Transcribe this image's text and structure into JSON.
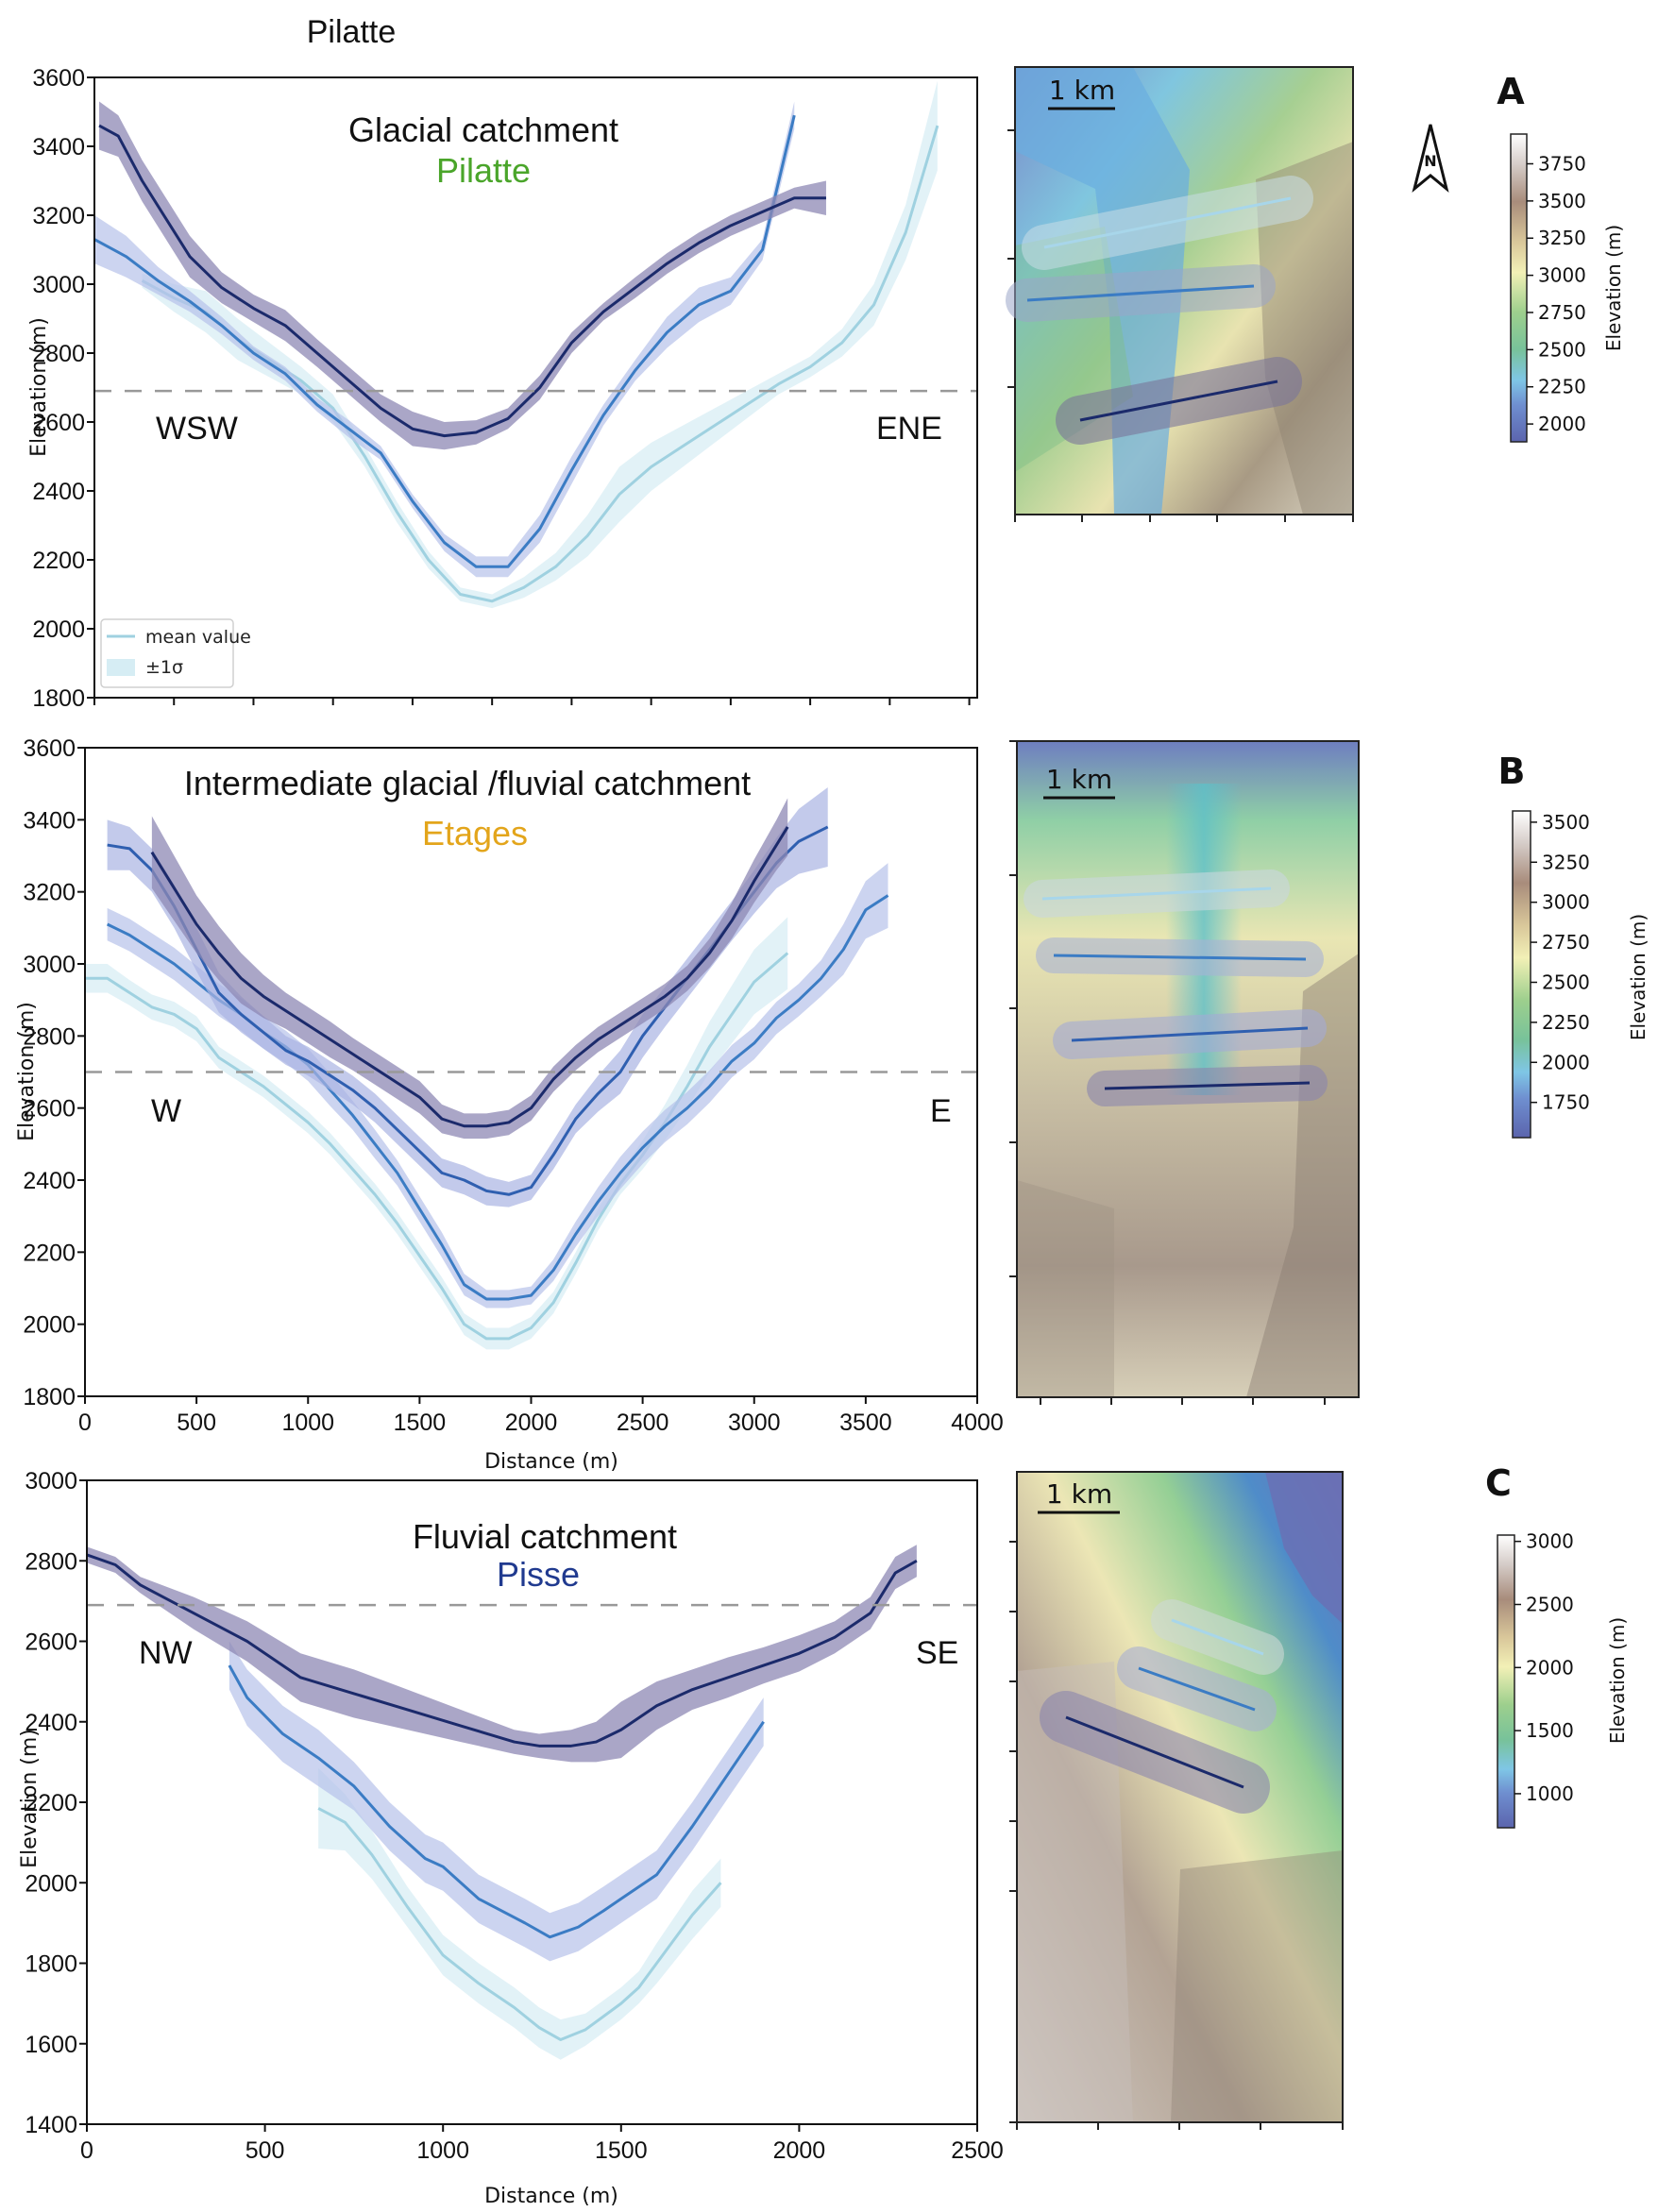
{
  "figure_title": "Pilatte",
  "colors": {
    "dark": "#1b2a6b",
    "dark_band": "#8e88b4",
    "mid": "#2f5fb0",
    "mid_band": "#aab4e2",
    "blue": "#3b7cc4",
    "blue_band": "#b6c2ea",
    "light": "#9fd1e0",
    "light_band": "#d6edf4",
    "ela_line": "#999999",
    "pilatte": "#4aa52a",
    "etages": "#e3a51b",
    "pisse": "#203a8f"
  },
  "chart_data": [
    {
      "type": "line",
      "panel": "A",
      "title": "Glacial catchment",
      "subtitle": "Pilatte",
      "subtitle_color_key": "pilatte",
      "xlabel": "",
      "ylabel": "Elevation (m)",
      "xlim": [
        0,
        5550
      ],
      "ylim": [
        1800,
        3600
      ],
      "xticks": [
        0,
        500,
        1000,
        1500,
        2000,
        2500,
        3000,
        3500,
        4000,
        4500,
        5000,
        5500
      ],
      "xtick_labels_shown": false,
      "yticks": [
        1800,
        2000,
        2200,
        2400,
        2600,
        2800,
        3000,
        3200,
        3400,
        3600
      ],
      "dashed_line_y": 2690,
      "direction_left": "WSW",
      "direction_right": "ENE",
      "legend": {
        "placement": "bottom-left",
        "entries": [
          "mean value",
          "±1σ"
        ]
      },
      "series": [
        {
          "name": "profile-1",
          "color_key": "light",
          "x": [
            300,
            500,
            700,
            900,
            1100,
            1300,
            1500,
            1700,
            1900,
            2100,
            2300,
            2500,
            2700,
            2900,
            3100,
            3300,
            3500,
            3700,
            3900,
            4100,
            4300,
            4500,
            4700,
            4900,
            5100,
            5300
          ],
          "y": [
            3010,
            2960,
            2920,
            2840,
            2780,
            2720,
            2640,
            2500,
            2340,
            2200,
            2100,
            2080,
            2120,
            2180,
            2270,
            2390,
            2470,
            2530,
            2590,
            2650,
            2710,
            2760,
            2830,
            2940,
            3150,
            3460
          ],
          "sigma": [
            20,
            40,
            60,
            60,
            50,
            40,
            40,
            30,
            30,
            25,
            20,
            20,
            30,
            40,
            60,
            80,
            70,
            60,
            50,
            40,
            30,
            30,
            40,
            60,
            80,
            130
          ]
        },
        {
          "name": "profile-2",
          "color_key": "blue",
          "x": [
            0,
            200,
            400,
            600,
            800,
            1000,
            1200,
            1400,
            1600,
            1800,
            2000,
            2200,
            2400,
            2600,
            2800,
            3000,
            3200,
            3400,
            3600,
            3800,
            4000,
            4200,
            4400
          ],
          "y": [
            3130,
            3080,
            3010,
            2950,
            2880,
            2800,
            2740,
            2650,
            2580,
            2510,
            2370,
            2250,
            2180,
            2180,
            2290,
            2460,
            2620,
            2750,
            2860,
            2940,
            2980,
            3100,
            3490
          ],
          "sigma": [
            70,
            60,
            40,
            30,
            25,
            20,
            20,
            20,
            25,
            20,
            20,
            25,
            30,
            30,
            40,
            40,
            30,
            30,
            45,
            50,
            40,
            30,
            40
          ]
        },
        {
          "name": "profile-3",
          "color_key": "dark",
          "x": [
            30,
            150,
            300,
            450,
            600,
            800,
            1000,
            1200,
            1400,
            1600,
            1800,
            2000,
            2200,
            2400,
            2600,
            2800,
            3000,
            3200,
            3400,
            3600,
            3800,
            4000,
            4200,
            4400,
            4600
          ],
          "y": [
            3460,
            3430,
            3300,
            3190,
            3080,
            2990,
            2930,
            2880,
            2800,
            2720,
            2640,
            2580,
            2560,
            2570,
            2610,
            2700,
            2830,
            2920,
            2990,
            3060,
            3120,
            3170,
            3210,
            3250,
            3250
          ],
          "sigma": [
            70,
            60,
            60,
            60,
            60,
            45,
            40,
            45,
            40,
            40,
            40,
            50,
            40,
            35,
            30,
            35,
            30,
            25,
            30,
            30,
            30,
            30,
            30,
            30,
            50
          ]
        }
      ]
    },
    {
      "type": "line",
      "panel": "B",
      "title": "Intermediate glacial /fluvial catchment",
      "subtitle": "Etages",
      "subtitle_color_key": "etages",
      "xlabel": "Distance (m)",
      "ylabel": "Elevation (m)",
      "xlim": [
        0,
        4000
      ],
      "ylim": [
        1800,
        3600
      ],
      "xticks": [
        0,
        500,
        1000,
        1500,
        2000,
        2500,
        3000,
        3500,
        4000
      ],
      "xtick_labels_shown": true,
      "yticks": [
        1800,
        2000,
        2200,
        2400,
        2600,
        2800,
        3000,
        3200,
        3400,
        3600
      ],
      "dashed_line_y": 2700,
      "direction_left": "W",
      "direction_right": "E",
      "series": [
        {
          "name": "profile-1",
          "color_key": "light",
          "x": [
            0,
            100,
            200,
            300,
            400,
            500,
            600,
            700,
            800,
            900,
            1000,
            1100,
            1200,
            1300,
            1400,
            1500,
            1600,
            1700,
            1800,
            1900,
            2000,
            2100,
            2200,
            2300,
            2400,
            2500,
            2600,
            2700,
            2800,
            2900,
            3000,
            3150
          ],
          "y": [
            2960,
            2960,
            2920,
            2880,
            2860,
            2820,
            2740,
            2700,
            2660,
            2610,
            2560,
            2500,
            2430,
            2360,
            2280,
            2190,
            2100,
            2000,
            1960,
            1960,
            1990,
            2060,
            2170,
            2290,
            2390,
            2470,
            2560,
            2660,
            2770,
            2860,
            2950,
            3030
          ],
          "sigma": [
            40,
            40,
            35,
            35,
            35,
            35,
            30,
            30,
            30,
            30,
            30,
            30,
            30,
            30,
            30,
            30,
            30,
            30,
            30,
            30,
            30,
            30,
            30,
            30,
            30,
            40,
            50,
            60,
            70,
            80,
            90,
            100
          ]
        },
        {
          "name": "profile-2",
          "color_key": "blue",
          "x": [
            100,
            200,
            300,
            400,
            500,
            600,
            700,
            800,
            900,
            1000,
            1100,
            1200,
            1300,
            1400,
            1500,
            1600,
            1700,
            1800,
            1900,
            2000,
            2100,
            2200,
            2300,
            2400,
            2500,
            2600,
            2700,
            2800,
            2900,
            3000,
            3100,
            3200,
            3300,
            3400,
            3500,
            3600
          ],
          "y": [
            3110,
            3080,
            3040,
            3000,
            2950,
            2900,
            2860,
            2810,
            2770,
            2720,
            2650,
            2580,
            2500,
            2420,
            2320,
            2220,
            2110,
            2070,
            2070,
            2080,
            2150,
            2250,
            2340,
            2420,
            2490,
            2550,
            2600,
            2660,
            2730,
            2780,
            2850,
            2900,
            2960,
            3040,
            3150,
            3190
          ],
          "sigma": [
            45,
            45,
            45,
            45,
            45,
            45,
            45,
            45,
            45,
            45,
            45,
            40,
            40,
            35,
            35,
            35,
            30,
            25,
            25,
            25,
            30,
            35,
            40,
            45,
            45,
            45,
            45,
            45,
            45,
            45,
            45,
            45,
            50,
            70,
            80,
            90
          ]
        },
        {
          "name": "profile-3",
          "color_key": "mid",
          "x": [
            100,
            200,
            300,
            400,
            500,
            600,
            700,
            800,
            900,
            1000,
            1100,
            1200,
            1300,
            1400,
            1500,
            1600,
            1700,
            1800,
            1900,
            2000,
            2100,
            2200,
            2300,
            2400,
            2500,
            2600,
            2700,
            2800,
            2900,
            3000,
            3100,
            3200,
            3330
          ],
          "y": [
            3330,
            3320,
            3260,
            3160,
            3040,
            2920,
            2860,
            2810,
            2760,
            2730,
            2690,
            2650,
            2600,
            2540,
            2480,
            2420,
            2400,
            2370,
            2360,
            2380,
            2470,
            2570,
            2640,
            2700,
            2800,
            2880,
            2960,
            3040,
            3120,
            3200,
            3280,
            3340,
            3380
          ],
          "sigma": [
            70,
            60,
            60,
            60,
            60,
            55,
            50,
            45,
            40,
            40,
            40,
            40,
            40,
            40,
            40,
            40,
            40,
            40,
            35,
            35,
            40,
            40,
            50,
            60,
            60,
            55,
            55,
            55,
            55,
            60,
            70,
            90,
            110
          ]
        },
        {
          "name": "profile-4",
          "color_key": "dark",
          "x": [
            300,
            400,
            500,
            600,
            700,
            800,
            900,
            1000,
            1100,
            1200,
            1300,
            1400,
            1500,
            1600,
            1700,
            1800,
            1900,
            2000,
            2100,
            2200,
            2300,
            2400,
            2500,
            2600,
            2700,
            2800,
            2900,
            3000,
            3100,
            3150
          ],
          "y": [
            3310,
            3210,
            3110,
            3030,
            2960,
            2910,
            2870,
            2830,
            2790,
            2750,
            2710,
            2670,
            2630,
            2570,
            2550,
            2550,
            2560,
            2600,
            2680,
            2740,
            2790,
            2830,
            2870,
            2910,
            2960,
            3030,
            3120,
            3230,
            3330,
            3380
          ],
          "sigma": [
            100,
            90,
            80,
            75,
            70,
            60,
            50,
            50,
            50,
            45,
            45,
            45,
            45,
            40,
            35,
            35,
            35,
            35,
            35,
            35,
            35,
            35,
            35,
            35,
            35,
            40,
            50,
            60,
            70,
            80
          ]
        }
      ]
    },
    {
      "type": "line",
      "panel": "C",
      "title": "Fluvial catchment",
      "subtitle": "Pisse",
      "subtitle_color_key": "pisse",
      "xlabel": "Distance (m)",
      "ylabel": "Elevation (m)",
      "xlim": [
        0,
        2500
      ],
      "ylim": [
        1400,
        3000
      ],
      "xticks": [
        0,
        500,
        1000,
        1500,
        2000,
        2500
      ],
      "xtick_labels_shown": true,
      "yticks": [
        1400,
        1600,
        1800,
        2000,
        2200,
        2400,
        2600,
        2800,
        3000
      ],
      "dashed_line_y": 2690,
      "direction_left": "NW",
      "direction_right": "SE",
      "series": [
        {
          "name": "profile-1",
          "color_key": "light",
          "x": [
            650,
            725,
            800,
            900,
            1000,
            1100,
            1200,
            1270,
            1330,
            1400,
            1500,
            1550,
            1600,
            1700,
            1780
          ],
          "y": [
            2185,
            2150,
            2070,
            1940,
            1820,
            1750,
            1690,
            1640,
            1610,
            1635,
            1700,
            1740,
            1800,
            1920,
            2000
          ],
          "sigma": [
            100,
            70,
            60,
            50,
            50,
            50,
            50,
            50,
            50,
            40,
            40,
            40,
            50,
            60,
            60
          ]
        },
        {
          "name": "profile-2",
          "color_key": "blue",
          "x": [
            400,
            450,
            550,
            650,
            750,
            850,
            950,
            1000,
            1100,
            1230,
            1300,
            1380,
            1450,
            1500,
            1600,
            1700,
            1800,
            1900
          ],
          "y": [
            2540,
            2460,
            2370,
            2310,
            2240,
            2140,
            2060,
            2040,
            1960,
            1900,
            1865,
            1890,
            1930,
            1960,
            2020,
            2140,
            2270,
            2400
          ],
          "sigma": [
            60,
            70,
            70,
            70,
            60,
            60,
            60,
            60,
            60,
            60,
            60,
            60,
            60,
            60,
            60,
            60,
            60,
            60
          ]
        },
        {
          "name": "profile-3",
          "color_key": "dark",
          "x": [
            0,
            80,
            150,
            300,
            450,
            600,
            750,
            900,
            1050,
            1200,
            1270,
            1360,
            1430,
            1500,
            1600,
            1700,
            1800,
            1900,
            2000,
            2100,
            2200,
            2270,
            2330
          ],
          "y": [
            2815,
            2790,
            2740,
            2670,
            2600,
            2510,
            2470,
            2430,
            2390,
            2350,
            2340,
            2340,
            2350,
            2380,
            2440,
            2480,
            2510,
            2540,
            2570,
            2610,
            2670,
            2770,
            2800
          ],
          "sigma": [
            20,
            20,
            20,
            40,
            50,
            60,
            60,
            50,
            40,
            30,
            30,
            40,
            50,
            70,
            60,
            50,
            50,
            45,
            45,
            40,
            40,
            40,
            40
          ]
        }
      ]
    }
  ],
  "maps": [
    {
      "panel": "A",
      "letter": "A",
      "scale_label": "1 km",
      "north_label": "N",
      "colorbar": {
        "label": "Elevation (m)",
        "ticks": [
          "3750",
          "3500",
          "3250",
          "3000",
          "2750",
          "2500",
          "2250",
          "2000"
        ],
        "range": [
          1880,
          3950
        ]
      }
    },
    {
      "panel": "B",
      "letter": "B",
      "scale_label": "1 km",
      "colorbar": {
        "label": "Elevation (m)",
        "ticks": [
          "3500",
          "3250",
          "3000",
          "2750",
          "2500",
          "2250",
          "2000",
          "1750"
        ],
        "range": [
          1530,
          3570
        ]
      }
    },
    {
      "panel": "C",
      "letter": "C",
      "scale_label": "1 km",
      "colorbar": {
        "label": "Elevation (m)",
        "ticks": [
          "3000",
          "2500",
          "2000",
          "1500",
          "1000"
        ],
        "range": [
          730,
          3050
        ]
      }
    }
  ]
}
